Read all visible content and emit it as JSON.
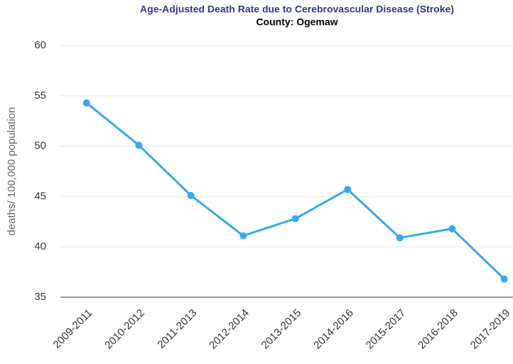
{
  "chart_data": {
    "type": "line",
    "title": "Age-Adjusted Death Rate due to Cerebrovascular Disease (Stroke)",
    "subtitle": "County: Ogemaw",
    "y_label": "deaths/ 100,000 population",
    "categories": [
      "2009-2011",
      "2010-2012",
      "2011-2013",
      "2012-2014",
      "2013-2015",
      "2014-2016",
      "2015-2017",
      "2016-2018",
      "2017-2019"
    ],
    "series": [
      {
        "name": "Ogemaw",
        "color": "#35a9f0",
        "values": [
          54.3,
          50.1,
          45.1,
          41.1,
          42.8,
          45.7,
          40.9,
          41.8,
          36.8
        ]
      }
    ],
    "ylim": [
      35,
      60
    ],
    "yticks": [
      35,
      40,
      45,
      50,
      55,
      60
    ],
    "grid": true
  }
}
